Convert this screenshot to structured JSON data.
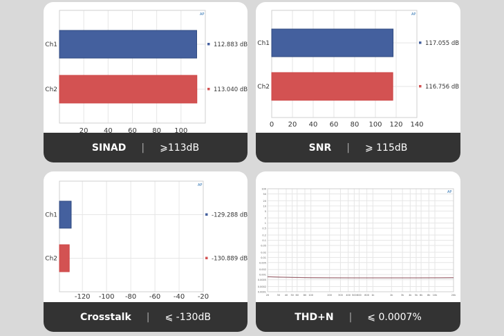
{
  "colors": {
    "ch1": "#44609e",
    "ch2": "#d35252",
    "footer": "#333333",
    "grid": "#e6e6e6",
    "thd_line": "#c96a7a"
  },
  "chart_data": [
    {
      "type": "bar",
      "id": "sinad",
      "title": "SINAD",
      "spec": "⩾113dB",
      "categories": [
        "Ch1",
        "Ch2"
      ],
      "values": [
        112.883,
        113.04
      ],
      "value_labels": [
        "112.883 dB",
        "113.040 dB"
      ],
      "xlim": [
        0,
        120
      ],
      "xticks": [
        20,
        40,
        60,
        80,
        100
      ],
      "base": 0,
      "grid": true
    },
    {
      "type": "bar",
      "id": "snr",
      "title": "SNR",
      "spec": "⩾ 115dB",
      "categories": [
        "Ch1",
        "Ch2"
      ],
      "values": [
        117.055,
        116.756
      ],
      "value_labels": [
        "117.055 dB",
        "116.756 dB"
      ],
      "xlim": [
        0,
        140
      ],
      "xticks": [
        0,
        20,
        40,
        60,
        80,
        100,
        120,
        140
      ],
      "base": 0,
      "grid": true
    },
    {
      "type": "bar",
      "id": "crosstalk",
      "title": "Crosstalk",
      "spec": "⩽ -130dB",
      "categories": [
        "Ch1",
        "Ch2"
      ],
      "values": [
        -129.288,
        -130.889
      ],
      "value_labels": [
        "-129.288 dB",
        "-130.889 dB"
      ],
      "xlim": [
        -139,
        -20
      ],
      "xticks": [
        -120,
        -100,
        -80,
        -60,
        -40,
        -20
      ],
      "base": -139,
      "grid": true
    },
    {
      "type": "line",
      "id": "thdn",
      "title": "THD+N",
      "spec": "⩽ 0.0007%",
      "xscale": "log",
      "yscale": "log",
      "xlim": [
        20,
        20000
      ],
      "ylim": [
        0.0001,
        100
      ],
      "xticks": [
        20,
        30,
        40,
        50,
        60,
        80,
        100,
        200,
        300,
        400,
        500,
        600,
        800,
        1000,
        2000,
        3000,
        4000,
        5000,
        6000,
        8000,
        10000,
        20000
      ],
      "xtick_labels": [
        "20",
        "30",
        "40",
        "50",
        "60",
        "80",
        "100",
        "200",
        "300",
        "400",
        "500",
        "600",
        "800",
        "1k",
        "2k",
        "3k",
        "4k",
        "5k",
        "6k",
        "8k",
        "10k",
        "20k"
      ],
      "yticks": [
        100,
        50,
        20,
        10,
        5,
        2,
        1,
        0.5,
        0.2,
        0.1,
        0.05,
        0.02,
        0.01,
        0.005,
        0.002,
        0.001,
        0.0005,
        0.0002,
        0.0001
      ],
      "x": [
        20,
        50,
        100,
        200,
        500,
        1000,
        2000,
        5000,
        10000,
        20000
      ],
      "y": [
        0.00075,
        0.00068,
        0.00066,
        0.00065,
        0.00064,
        0.00064,
        0.00064,
        0.00064,
        0.00065,
        0.00066
      ],
      "grid": true
    }
  ]
}
